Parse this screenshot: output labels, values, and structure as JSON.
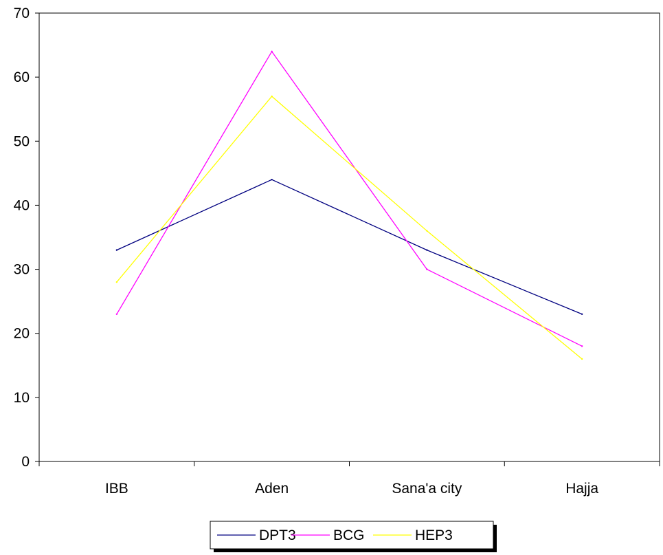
{
  "chart_data": {
    "type": "line",
    "categories": [
      "IBB",
      "Aden",
      "Sana'a city",
      "Hajja"
    ],
    "series": [
      {
        "name": "DPT3",
        "values": [
          33,
          44,
          33,
          23
        ],
        "color": "#000080"
      },
      {
        "name": "BCG",
        "values": [
          23,
          64,
          30,
          18
        ],
        "color": "#FF00FF"
      },
      {
        "name": "HEP3",
        "values": [
          28,
          57,
          36,
          16
        ],
        "color": "#FFFF00"
      }
    ],
    "title": "",
    "xlabel": "",
    "ylabel": "",
    "ylim": [
      0,
      70
    ],
    "yticks": [
      0,
      10,
      20,
      30,
      40,
      50,
      60,
      70
    ],
    "grid": false,
    "legend": "bottom"
  }
}
